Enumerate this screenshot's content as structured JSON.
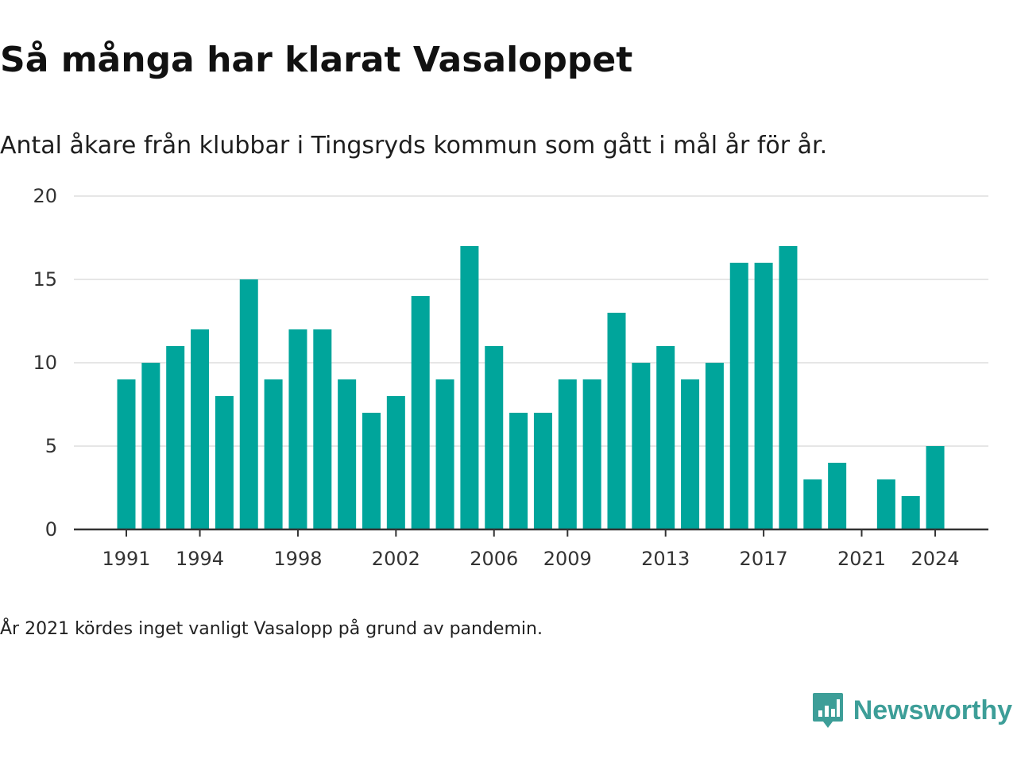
{
  "header": {
    "title": "Så många har klarat Vasaloppet",
    "subtitle": "Antal åkare från klubbar i Tingsryds kommun som gått i mål år för år."
  },
  "footer": {
    "note": "År 2021 kördes inget vanligt Vasalopp på grund av pandemin.",
    "brand": "Newsworthy",
    "brand_icon": "bar-chart-speech-bubble-icon"
  },
  "colors": {
    "bar": "#00a59b",
    "grid": "#dddddd",
    "axis": "#333333",
    "brand": "#3d9e98"
  },
  "chart_data": {
    "type": "bar",
    "title": "Så många har klarat Vasaloppet",
    "subtitle": "Antal åkare från klubbar i Tingsryds kommun som gått i mål år för år.",
    "xlabel": "",
    "ylabel": "",
    "ylim": [
      0,
      20
    ],
    "y_ticks": [
      "0",
      "5",
      "10",
      "15",
      "20"
    ],
    "x_tick_labels": [
      "1991",
      "1994",
      "1998",
      "2002",
      "2006",
      "2009",
      "2013",
      "2017",
      "2021",
      "2024"
    ],
    "grid": "horizontal",
    "legend": "none",
    "categories": [
      "1991",
      "1992",
      "1993",
      "1994",
      "1995",
      "1996",
      "1997",
      "1998",
      "1999",
      "2000",
      "2001",
      "2002",
      "2003",
      "2004",
      "2005",
      "2006",
      "2007",
      "2008",
      "2009",
      "2010",
      "2011",
      "2012",
      "2013",
      "2014",
      "2015",
      "2016",
      "2017",
      "2018",
      "2019",
      "2020",
      "2021",
      "2022",
      "2023",
      "2024"
    ],
    "values": [
      9,
      10,
      11,
      12,
      8,
      15,
      9,
      12,
      12,
      9,
      7,
      8,
      14,
      9,
      17,
      11,
      7,
      7,
      9,
      9,
      13,
      10,
      11,
      9,
      10,
      16,
      16,
      17,
      3,
      4,
      0,
      3,
      2,
      5
    ]
  }
}
